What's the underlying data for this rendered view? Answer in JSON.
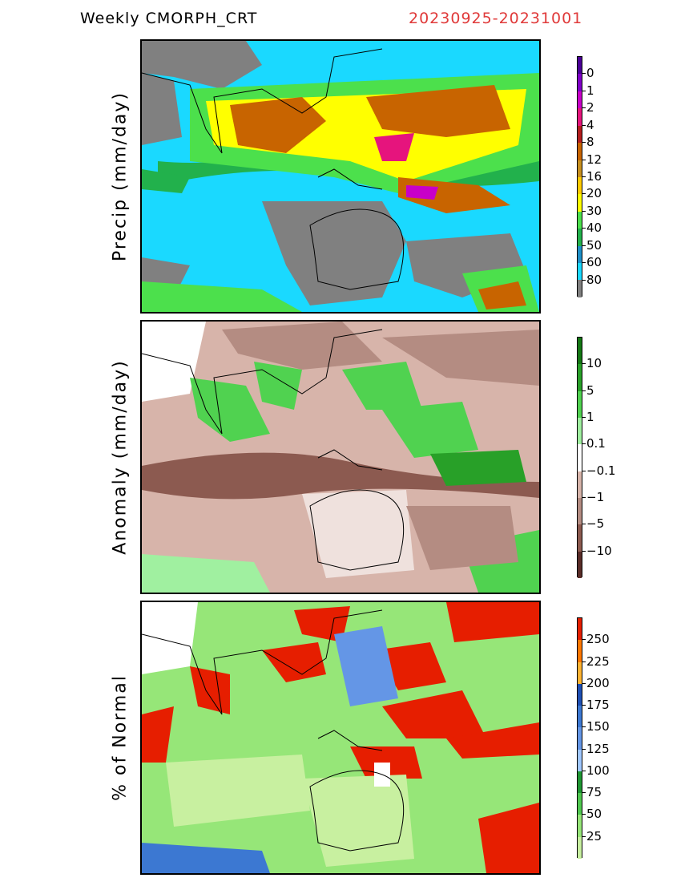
{
  "header": {
    "title": "Weekly CMORPH_CRT",
    "date_range": "20230925-20231001"
  },
  "panels": [
    {
      "ylabel": "Precip (mm/day)",
      "colorbar_colors": [
        "#808080",
        "#1ad9ff",
        "#1e90c8",
        "#22b14c",
        "#4ce04c",
        "#ffff00",
        "#ffcc00",
        "#c8901e",
        "#c86400",
        "#b41e1e",
        "#e6147d",
        "#c800c8",
        "#8000c8",
        "#4b0096"
      ],
      "colorbar_labels": [
        "0",
        "1",
        "2",
        "4",
        "8",
        "12",
        "16",
        "20",
        "30",
        "40",
        "50",
        "60",
        "80"
      ]
    },
    {
      "ylabel": "Anomaly (mm/day)",
      "colorbar_colors": [
        "#5a2d28",
        "#8c5a50",
        "#b48c82",
        "#d7b4aa",
        "#ffffff",
        "#a0f0a0",
        "#50d250",
        "#28a028",
        "#147814"
      ],
      "colorbar_labels": [
        "10",
        "5",
        "1",
        "0.1",
        "−0.1",
        "−1",
        "−5",
        "−10"
      ]
    },
    {
      "ylabel": "% of Normal",
      "colorbar_colors": [
        "#c8f0a0",
        "#96e678",
        "#50c850",
        "#1e9632",
        "#a0c8ff",
        "#6496e6",
        "#3c78d2",
        "#1e50b4",
        "#ffb432",
        "#ff7800",
        "#e61e00"
      ],
      "colorbar_labels": [
        "250",
        "225",
        "200",
        "175",
        "150",
        "125",
        "100",
        "75",
        "50",
        "25"
      ]
    }
  ]
}
